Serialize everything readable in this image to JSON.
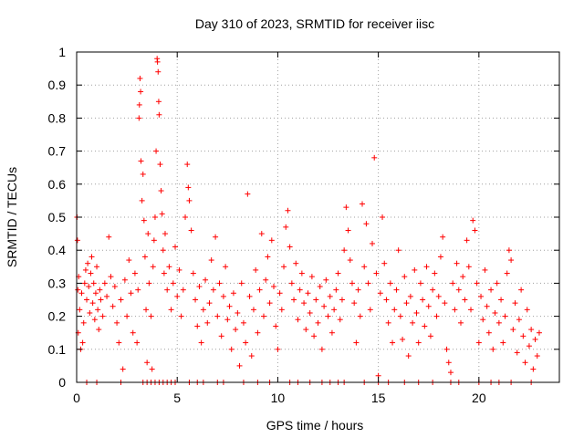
{
  "chart_data": {
    "type": "scatter",
    "title": "Day 310 of 2023, SRMTID for receiver iisc",
    "xlabel": "GPS time / hours",
    "ylabel": "SRMTID / TECUs",
    "xlim": [
      0,
      24
    ],
    "ylim": [
      0,
      1
    ],
    "x_ticks": [
      0,
      5,
      10,
      15,
      20
    ],
    "x_tick_labels": [
      "0",
      "5",
      "10",
      "15",
      "20"
    ],
    "y_ticks": [
      0,
      0.1,
      0.2,
      0.3,
      0.4,
      0.5,
      0.6,
      0.7,
      0.8,
      0.9,
      1
    ],
    "y_tick_labels": [
      "0",
      "0.1",
      "0.2",
      "0.3",
      "0.4",
      "0.5",
      "0.6",
      "0.7",
      "0.8",
      "0.9",
      "1"
    ],
    "grid": true,
    "marker": "+",
    "color": "#ff0000",
    "series": [
      {
        "name": "SRMTID",
        "points": [
          [
            0.02,
            0.5
          ],
          [
            0.04,
            0.43
          ],
          [
            0.06,
            0.28
          ],
          [
            0.08,
            0.15
          ],
          [
            0.1,
            0.32
          ],
          [
            0.15,
            0.22
          ],
          [
            0.2,
            0.1
          ],
          [
            0.25,
            0.27
          ],
          [
            0.3,
            0.12
          ],
          [
            0.35,
            0.18
          ],
          [
            0.4,
            0.3
          ],
          [
            0.45,
            0.34
          ],
          [
            0.5,
            0.25
          ],
          [
            0.55,
            0.36
          ],
          [
            0.6,
            0.29
          ],
          [
            0.65,
            0.21
          ],
          [
            0.7,
            0.33
          ],
          [
            0.75,
            0.38
          ],
          [
            0.8,
            0.24
          ],
          [
            0.85,
            0.3
          ],
          [
            0.9,
            0.19
          ],
          [
            0.95,
            0.27
          ],
          [
            1.0,
            0.35
          ],
          [
            1.05,
            0.22
          ],
          [
            1.1,
            0.16
          ],
          [
            1.15,
            0.28
          ],
          [
            1.2,
            0.25
          ],
          [
            1.3,
            0.2
          ],
          [
            1.4,
            0.3
          ],
          [
            1.5,
            0.26
          ],
          [
            1.6,
            0.44
          ],
          [
            1.7,
            0.32
          ],
          [
            1.8,
            0.23
          ],
          [
            1.9,
            0.29
          ],
          [
            2.0,
            0.18
          ],
          [
            2.1,
            0.12
          ],
          [
            2.2,
            0.25
          ],
          [
            2.3,
            0.04
          ],
          [
            2.4,
            0.31
          ],
          [
            2.5,
            0.2
          ],
          [
            2.6,
            0.37
          ],
          [
            2.7,
            0.27
          ],
          [
            2.8,
            0.15
          ],
          [
            2.9,
            0.33
          ],
          [
            3.0,
            0.12
          ],
          [
            3.05,
            0.28
          ],
          [
            3.1,
            0.8
          ],
          [
            3.12,
            0.84
          ],
          [
            3.15,
            0.92
          ],
          [
            3.18,
            0.88
          ],
          [
            3.2,
            0.67
          ],
          [
            3.25,
            0.55
          ],
          [
            3.3,
            0.63
          ],
          [
            3.35,
            0.49
          ],
          [
            3.4,
            0.38
          ],
          [
            3.45,
            0.22
          ],
          [
            3.5,
            0.06
          ],
          [
            3.55,
            0.45
          ],
          [
            3.6,
            0.3
          ],
          [
            3.7,
            0.2
          ],
          [
            3.75,
            0.04
          ],
          [
            3.8,
            0.35
          ],
          [
            3.85,
            0.43
          ],
          [
            3.9,
            0.5
          ],
          [
            3.95,
            0.7
          ],
          [
            4.0,
            0.98
          ],
          [
            4.02,
            0.97
          ],
          [
            4.05,
            0.94
          ],
          [
            4.08,
            0.85
          ],
          [
            4.1,
            0.81
          ],
          [
            4.15,
            0.66
          ],
          [
            4.2,
            0.58
          ],
          [
            4.25,
            0.51
          ],
          [
            4.3,
            0.4
          ],
          [
            4.35,
            0.33
          ],
          [
            4.4,
            0.45
          ],
          [
            4.5,
            0.28
          ],
          [
            4.6,
            0.35
          ],
          [
            4.7,
            0.22
          ],
          [
            4.8,
            0.3
          ],
          [
            4.9,
            0.41
          ],
          [
            5.0,
            0.26
          ],
          [
            5.1,
            0.34
          ],
          [
            5.2,
            0.2
          ],
          [
            5.3,
            0.28
          ],
          [
            5.4,
            0.5
          ],
          [
            5.5,
            0.66
          ],
          [
            5.55,
            0.59
          ],
          [
            5.6,
            0.55
          ],
          [
            5.7,
            0.46
          ],
          [
            5.8,
            0.33
          ],
          [
            5.9,
            0.25
          ],
          [
            6.0,
            0.17
          ],
          [
            6.1,
            0.29
          ],
          [
            6.2,
            0.12
          ],
          [
            6.3,
            0.22
          ],
          [
            6.4,
            0.31
          ],
          [
            6.5,
            0.18
          ],
          [
            6.6,
            0.24
          ],
          [
            6.7,
            0.37
          ],
          [
            6.8,
            0.28
          ],
          [
            6.9,
            0.44
          ],
          [
            7.0,
            0.2
          ],
          [
            7.1,
            0.3
          ],
          [
            7.2,
            0.14
          ],
          [
            7.3,
            0.26
          ],
          [
            7.4,
            0.35
          ],
          [
            7.5,
            0.19
          ],
          [
            7.6,
            0.23
          ],
          [
            7.7,
            0.1
          ],
          [
            7.8,
            0.27
          ],
          [
            7.9,
            0.16
          ],
          [
            8.0,
            0.21
          ],
          [
            8.1,
            0.05
          ],
          [
            8.2,
            0.3
          ],
          [
            8.3,
            0.18
          ],
          [
            8.4,
            0.12
          ],
          [
            8.5,
            0.57
          ],
          [
            8.6,
            0.26
          ],
          [
            8.7,
            0.08
          ],
          [
            8.8,
            0.22
          ],
          [
            8.9,
            0.34
          ],
          [
            9.0,
            0.15
          ],
          [
            9.1,
            0.28
          ],
          [
            9.2,
            0.45
          ],
          [
            9.3,
            0.2
          ],
          [
            9.4,
            0.31
          ],
          [
            9.5,
            0.38
          ],
          [
            9.6,
            0.24
          ],
          [
            9.7,
            0.43
          ],
          [
            9.8,
            0.29
          ],
          [
            9.9,
            0.17
          ],
          [
            10.0,
            0.1
          ],
          [
            10.1,
            0.27
          ],
          [
            10.2,
            0.22
          ],
          [
            10.3,
            0.35
          ],
          [
            10.4,
            0.47
          ],
          [
            10.5,
            0.52
          ],
          [
            10.6,
            0.41
          ],
          [
            10.7,
            0.3
          ],
          [
            10.8,
            0.25
          ],
          [
            10.9,
            0.36
          ],
          [
            11.0,
            0.19
          ],
          [
            11.1,
            0.28
          ],
          [
            11.2,
            0.33
          ],
          [
            11.3,
            0.24
          ],
          [
            11.4,
            0.16
          ],
          [
            11.5,
            0.27
          ],
          [
            11.6,
            0.21
          ],
          [
            11.7,
            0.32
          ],
          [
            11.8,
            0.14
          ],
          [
            11.9,
            0.25
          ],
          [
            12.0,
            0.18
          ],
          [
            12.1,
            0.29
          ],
          [
            12.2,
            0.1
          ],
          [
            12.3,
            0.23
          ],
          [
            12.4,
            0.31
          ],
          [
            12.5,
            0.2
          ],
          [
            12.6,
            0.26
          ],
          [
            12.7,
            0.15
          ],
          [
            12.8,
            0.22
          ],
          [
            12.9,
            0.28
          ],
          [
            13.0,
            0.33
          ],
          [
            13.1,
            0.19
          ],
          [
            13.2,
            0.25
          ],
          [
            13.3,
            0.4
          ],
          [
            13.4,
            0.53
          ],
          [
            13.5,
            0.46
          ],
          [
            13.6,
            0.37
          ],
          [
            13.7,
            0.3
          ],
          [
            13.8,
            0.24
          ],
          [
            13.9,
            0.12
          ],
          [
            14.0,
            0.28
          ],
          [
            14.1,
            0.2
          ],
          [
            14.2,
            0.54
          ],
          [
            14.3,
            0.35
          ],
          [
            14.4,
            0.48
          ],
          [
            14.5,
            0.3
          ],
          [
            14.6,
            0.22
          ],
          [
            14.7,
            0.42
          ],
          [
            14.8,
            0.68
          ],
          [
            14.9,
            0.33
          ],
          [
            15.0,
            0.02
          ],
          [
            15.1,
            0.27
          ],
          [
            15.2,
            0.5
          ],
          [
            15.3,
            0.36
          ],
          [
            15.4,
            0.25
          ],
          [
            15.5,
            0.18
          ],
          [
            15.6,
            0.3
          ],
          [
            15.7,
            0.12
          ],
          [
            15.8,
            0.22
          ],
          [
            15.9,
            0.28
          ],
          [
            16.0,
            0.4
          ],
          [
            16.1,
            0.2
          ],
          [
            16.2,
            0.13
          ],
          [
            16.3,
            0.32
          ],
          [
            16.4,
            0.24
          ],
          [
            16.5,
            0.08
          ],
          [
            16.6,
            0.26
          ],
          [
            16.7,
            0.18
          ],
          [
            16.8,
            0.34
          ],
          [
            16.9,
            0.21
          ],
          [
            17.0,
            0.12
          ],
          [
            17.1,
            0.3
          ],
          [
            17.2,
            0.25
          ],
          [
            17.3,
            0.17
          ],
          [
            17.4,
            0.35
          ],
          [
            17.5,
            0.23
          ],
          [
            17.6,
            0.14
          ],
          [
            17.7,
            0.28
          ],
          [
            17.8,
            0.33
          ],
          [
            17.9,
            0.2
          ],
          [
            18.0,
            0.26
          ],
          [
            18.1,
            0.38
          ],
          [
            18.2,
            0.44
          ],
          [
            18.3,
            0.24
          ],
          [
            18.4,
            0.1
          ],
          [
            18.5,
            0.06
          ],
          [
            18.6,
            0.03
          ],
          [
            18.7,
            0.3
          ],
          [
            18.8,
            0.22
          ],
          [
            18.9,
            0.36
          ],
          [
            19.0,
            0.28
          ],
          [
            19.1,
            0.18
          ],
          [
            19.2,
            0.32
          ],
          [
            19.3,
            0.25
          ],
          [
            19.4,
            0.43
          ],
          [
            19.5,
            0.35
          ],
          [
            19.6,
            0.22
          ],
          [
            19.7,
            0.49
          ],
          [
            19.8,
            0.46
          ],
          [
            19.9,
            0.3
          ],
          [
            20.0,
            0.12
          ],
          [
            20.1,
            0.26
          ],
          [
            20.2,
            0.19
          ],
          [
            20.3,
            0.34
          ],
          [
            20.4,
            0.23
          ],
          [
            20.5,
            0.15
          ],
          [
            20.6,
            0.28
          ],
          [
            20.7,
            0.1
          ],
          [
            20.8,
            0.21
          ],
          [
            20.9,
            0.3
          ],
          [
            21.0,
            0.18
          ],
          [
            21.1,
            0.25
          ],
          [
            21.2,
            0.12
          ],
          [
            21.3,
            0.2
          ],
          [
            21.4,
            0.33
          ],
          [
            21.5,
            0.4
          ],
          [
            21.6,
            0.37
          ],
          [
            21.7,
            0.16
          ],
          [
            21.8,
            0.24
          ],
          [
            21.9,
            0.09
          ],
          [
            22.0,
            0.19
          ],
          [
            22.1,
            0.28
          ],
          [
            22.2,
            0.14
          ],
          [
            22.3,
            0.06
          ],
          [
            22.4,
            0.22
          ],
          [
            22.5,
            0.11
          ],
          [
            22.6,
            0.16
          ],
          [
            22.7,
            0.04
          ],
          [
            22.8,
            0.13
          ],
          [
            22.9,
            0.08
          ],
          [
            23.0,
            0.15
          ],
          [
            3.3,
            0.0
          ],
          [
            3.5,
            0.0
          ],
          [
            3.7,
            0.0
          ],
          [
            3.9,
            0.0
          ],
          [
            4.1,
            0.0
          ],
          [
            4.3,
            0.0
          ],
          [
            4.5,
            0.0
          ],
          [
            4.7,
            0.0
          ],
          [
            4.9,
            0.0
          ],
          [
            5.6,
            0.0
          ],
          [
            6.0,
            0.0
          ],
          [
            6.3,
            0.0
          ],
          [
            7.0,
            0.0
          ],
          [
            7.3,
            0.0
          ],
          [
            8.3,
            0.0
          ],
          [
            9.0,
            0.0
          ],
          [
            9.6,
            0.0
          ],
          [
            10.6,
            0.0
          ],
          [
            11.0,
            0.0
          ],
          [
            11.6,
            0.0
          ],
          [
            12.2,
            0.0
          ],
          [
            12.6,
            0.0
          ],
          [
            13.0,
            0.0
          ],
          [
            13.3,
            0.0
          ],
          [
            14.3,
            0.0
          ],
          [
            15.0,
            0.0
          ],
          [
            15.5,
            0.0
          ],
          [
            16.3,
            0.0
          ],
          [
            17.0,
            0.0
          ],
          [
            17.7,
            0.0
          ],
          [
            18.6,
            0.0
          ],
          [
            19.0,
            0.0
          ],
          [
            20.0,
            0.0
          ],
          [
            20.6,
            0.0
          ],
          [
            21.0,
            0.0
          ],
          [
            21.6,
            0.0
          ],
          [
            22.6,
            0.0
          ],
          [
            0.5,
            0.0
          ],
          [
            1.0,
            0.0
          ],
          [
            2.2,
            0.0
          ]
        ]
      }
    ]
  }
}
